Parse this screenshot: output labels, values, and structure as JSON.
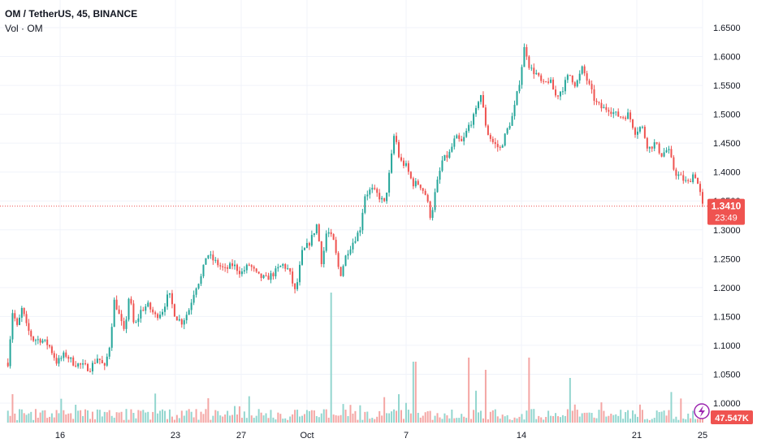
{
  "header": {
    "title": "OM / TetherUS, 45, BINANCE",
    "volume_label": "Vol · OM"
  },
  "price_badge": {
    "price": "1.3410",
    "countdown": "23:49"
  },
  "volume_badge": {
    "value": "47.547K"
  },
  "colors": {
    "up": "#26a69a",
    "down": "#ef5350",
    "up_volume": "#93d6cf",
    "down_volume": "#f4a6a4",
    "grid": "#f0f3fa",
    "price_line": "#ef5350",
    "lightning": "#9c27b0"
  },
  "icons": {
    "alert": "lightning-icon"
  },
  "chart_data": {
    "type": "candlestick",
    "title": "OM / TetherUS, 45, BINANCE",
    "series": [
      {
        "name": "Vol · OM",
        "type": "volume"
      }
    ],
    "y_ticks": [
      "1.6500",
      "1.6000",
      "1.5500",
      "1.5000",
      "1.4500",
      "1.4000",
      "1.3500",
      "1.3000",
      "1.2500",
      "1.2000",
      "1.1500",
      "1.1000",
      "1.0500",
      "1.0000"
    ],
    "x_ticks": [
      {
        "label": "16",
        "day": 16
      },
      {
        "label": "23",
        "day": 23
      },
      {
        "label": "27",
        "day": 27
      },
      {
        "label": "Oct",
        "day": 31
      },
      {
        "label": "7",
        "day": 37
      },
      {
        "label": "14",
        "day": 44
      },
      {
        "label": "21",
        "day": 51
      },
      {
        "label": "25",
        "day": 55
      }
    ],
    "ylim": [
      1.0,
      1.65
    ],
    "last_price": 1.341,
    "grid": true,
    "close_path": [
      [
        12.7,
        1.07
      ],
      [
        13.0,
        1.16
      ],
      [
        13.3,
        1.13
      ],
      [
        13.6,
        1.165
      ],
      [
        13.9,
        1.13
      ],
      [
        14.3,
        1.11
      ],
      [
        14.8,
        1.11
      ],
      [
        15.3,
        1.1
      ],
      [
        15.8,
        1.07
      ],
      [
        16.3,
        1.085
      ],
      [
        16.8,
        1.07
      ],
      [
        17.3,
        1.065
      ],
      [
        17.8,
        1.06
      ],
      [
        18.3,
        1.08
      ],
      [
        18.7,
        1.06
      ],
      [
        19.0,
        1.1
      ],
      [
        19.3,
        1.18
      ],
      [
        19.6,
        1.15
      ],
      [
        19.9,
        1.12
      ],
      [
        20.2,
        1.19
      ],
      [
        20.5,
        1.13
      ],
      [
        20.9,
        1.16
      ],
      [
        21.3,
        1.17
      ],
      [
        21.8,
        1.15
      ],
      [
        22.2,
        1.16
      ],
      [
        22.6,
        1.19
      ],
      [
        23.0,
        1.15
      ],
      [
        23.4,
        1.14
      ],
      [
        23.8,
        1.16
      ],
      [
        24.2,
        1.2
      ],
      [
        24.6,
        1.22
      ],
      [
        24.9,
        1.26
      ],
      [
        25.2,
        1.25
      ],
      [
        25.6,
        1.24
      ],
      [
        26.0,
        1.23
      ],
      [
        26.5,
        1.24
      ],
      [
        27.0,
        1.225
      ],
      [
        27.5,
        1.24
      ],
      [
        28.0,
        1.22
      ],
      [
        28.5,
        1.215
      ],
      [
        29.0,
        1.225
      ],
      [
        29.5,
        1.24
      ],
      [
        29.9,
        1.23
      ],
      [
        30.3,
        1.19
      ],
      [
        30.7,
        1.26
      ],
      [
        31.2,
        1.28
      ],
      [
        31.6,
        1.31
      ],
      [
        31.9,
        1.24
      ],
      [
        32.2,
        1.3
      ],
      [
        32.6,
        1.28
      ],
      [
        33.0,
        1.22
      ],
      [
        33.4,
        1.26
      ],
      [
        33.8,
        1.28
      ],
      [
        34.2,
        1.3
      ],
      [
        34.5,
        1.36
      ],
      [
        34.9,
        1.37
      ],
      [
        35.3,
        1.36
      ],
      [
        35.7,
        1.345
      ],
      [
        36.0,
        1.4
      ],
      [
        36.3,
        1.47
      ],
      [
        36.6,
        1.42
      ],
      [
        37.0,
        1.41
      ],
      [
        37.4,
        1.38
      ],
      [
        37.8,
        1.38
      ],
      [
        38.2,
        1.36
      ],
      [
        38.5,
        1.32
      ],
      [
        38.8,
        1.37
      ],
      [
        39.2,
        1.42
      ],
      [
        39.6,
        1.43
      ],
      [
        40.0,
        1.46
      ],
      [
        40.4,
        1.45
      ],
      [
        40.8,
        1.48
      ],
      [
        41.2,
        1.5
      ],
      [
        41.5,
        1.54
      ],
      [
        41.9,
        1.47
      ],
      [
        42.3,
        1.45
      ],
      [
        42.7,
        1.44
      ],
      [
        43.1,
        1.47
      ],
      [
        43.5,
        1.5
      ],
      [
        43.9,
        1.56
      ],
      [
        44.2,
        1.62
      ],
      [
        44.5,
        1.58
      ],
      [
        44.9,
        1.57
      ],
      [
        45.3,
        1.55
      ],
      [
        45.7,
        1.56
      ],
      [
        46.1,
        1.53
      ],
      [
        46.5,
        1.545
      ],
      [
        46.9,
        1.57
      ],
      [
        47.3,
        1.55
      ],
      [
        47.7,
        1.58
      ],
      [
        48.1,
        1.55
      ],
      [
        48.5,
        1.52
      ],
      [
        48.9,
        1.51
      ],
      [
        49.3,
        1.51
      ],
      [
        49.7,
        1.5
      ],
      [
        50.1,
        1.495
      ],
      [
        50.5,
        1.5
      ],
      [
        50.9,
        1.47
      ],
      [
        51.3,
        1.48
      ],
      [
        51.7,
        1.44
      ],
      [
        52.1,
        1.45
      ],
      [
        52.5,
        1.43
      ],
      [
        52.9,
        1.44
      ],
      [
        53.3,
        1.4
      ],
      [
        53.7,
        1.39
      ],
      [
        54.1,
        1.38
      ],
      [
        54.5,
        1.4
      ],
      [
        54.8,
        1.37
      ],
      [
        55.0,
        1.341
      ]
    ],
    "volume_spikes": [
      {
        "day": 32.5,
        "value": 160
      },
      {
        "day": 37.5,
        "value": 75
      },
      {
        "day": 40.8,
        "value": 80
      },
      {
        "day": 44.5,
        "value": 80
      },
      {
        "day": 41.8,
        "value": 65
      },
      {
        "day": 47.0,
        "value": 55
      },
      {
        "day": 13.0,
        "value": 35
      },
      {
        "day": 25.0,
        "value": 30
      }
    ]
  }
}
